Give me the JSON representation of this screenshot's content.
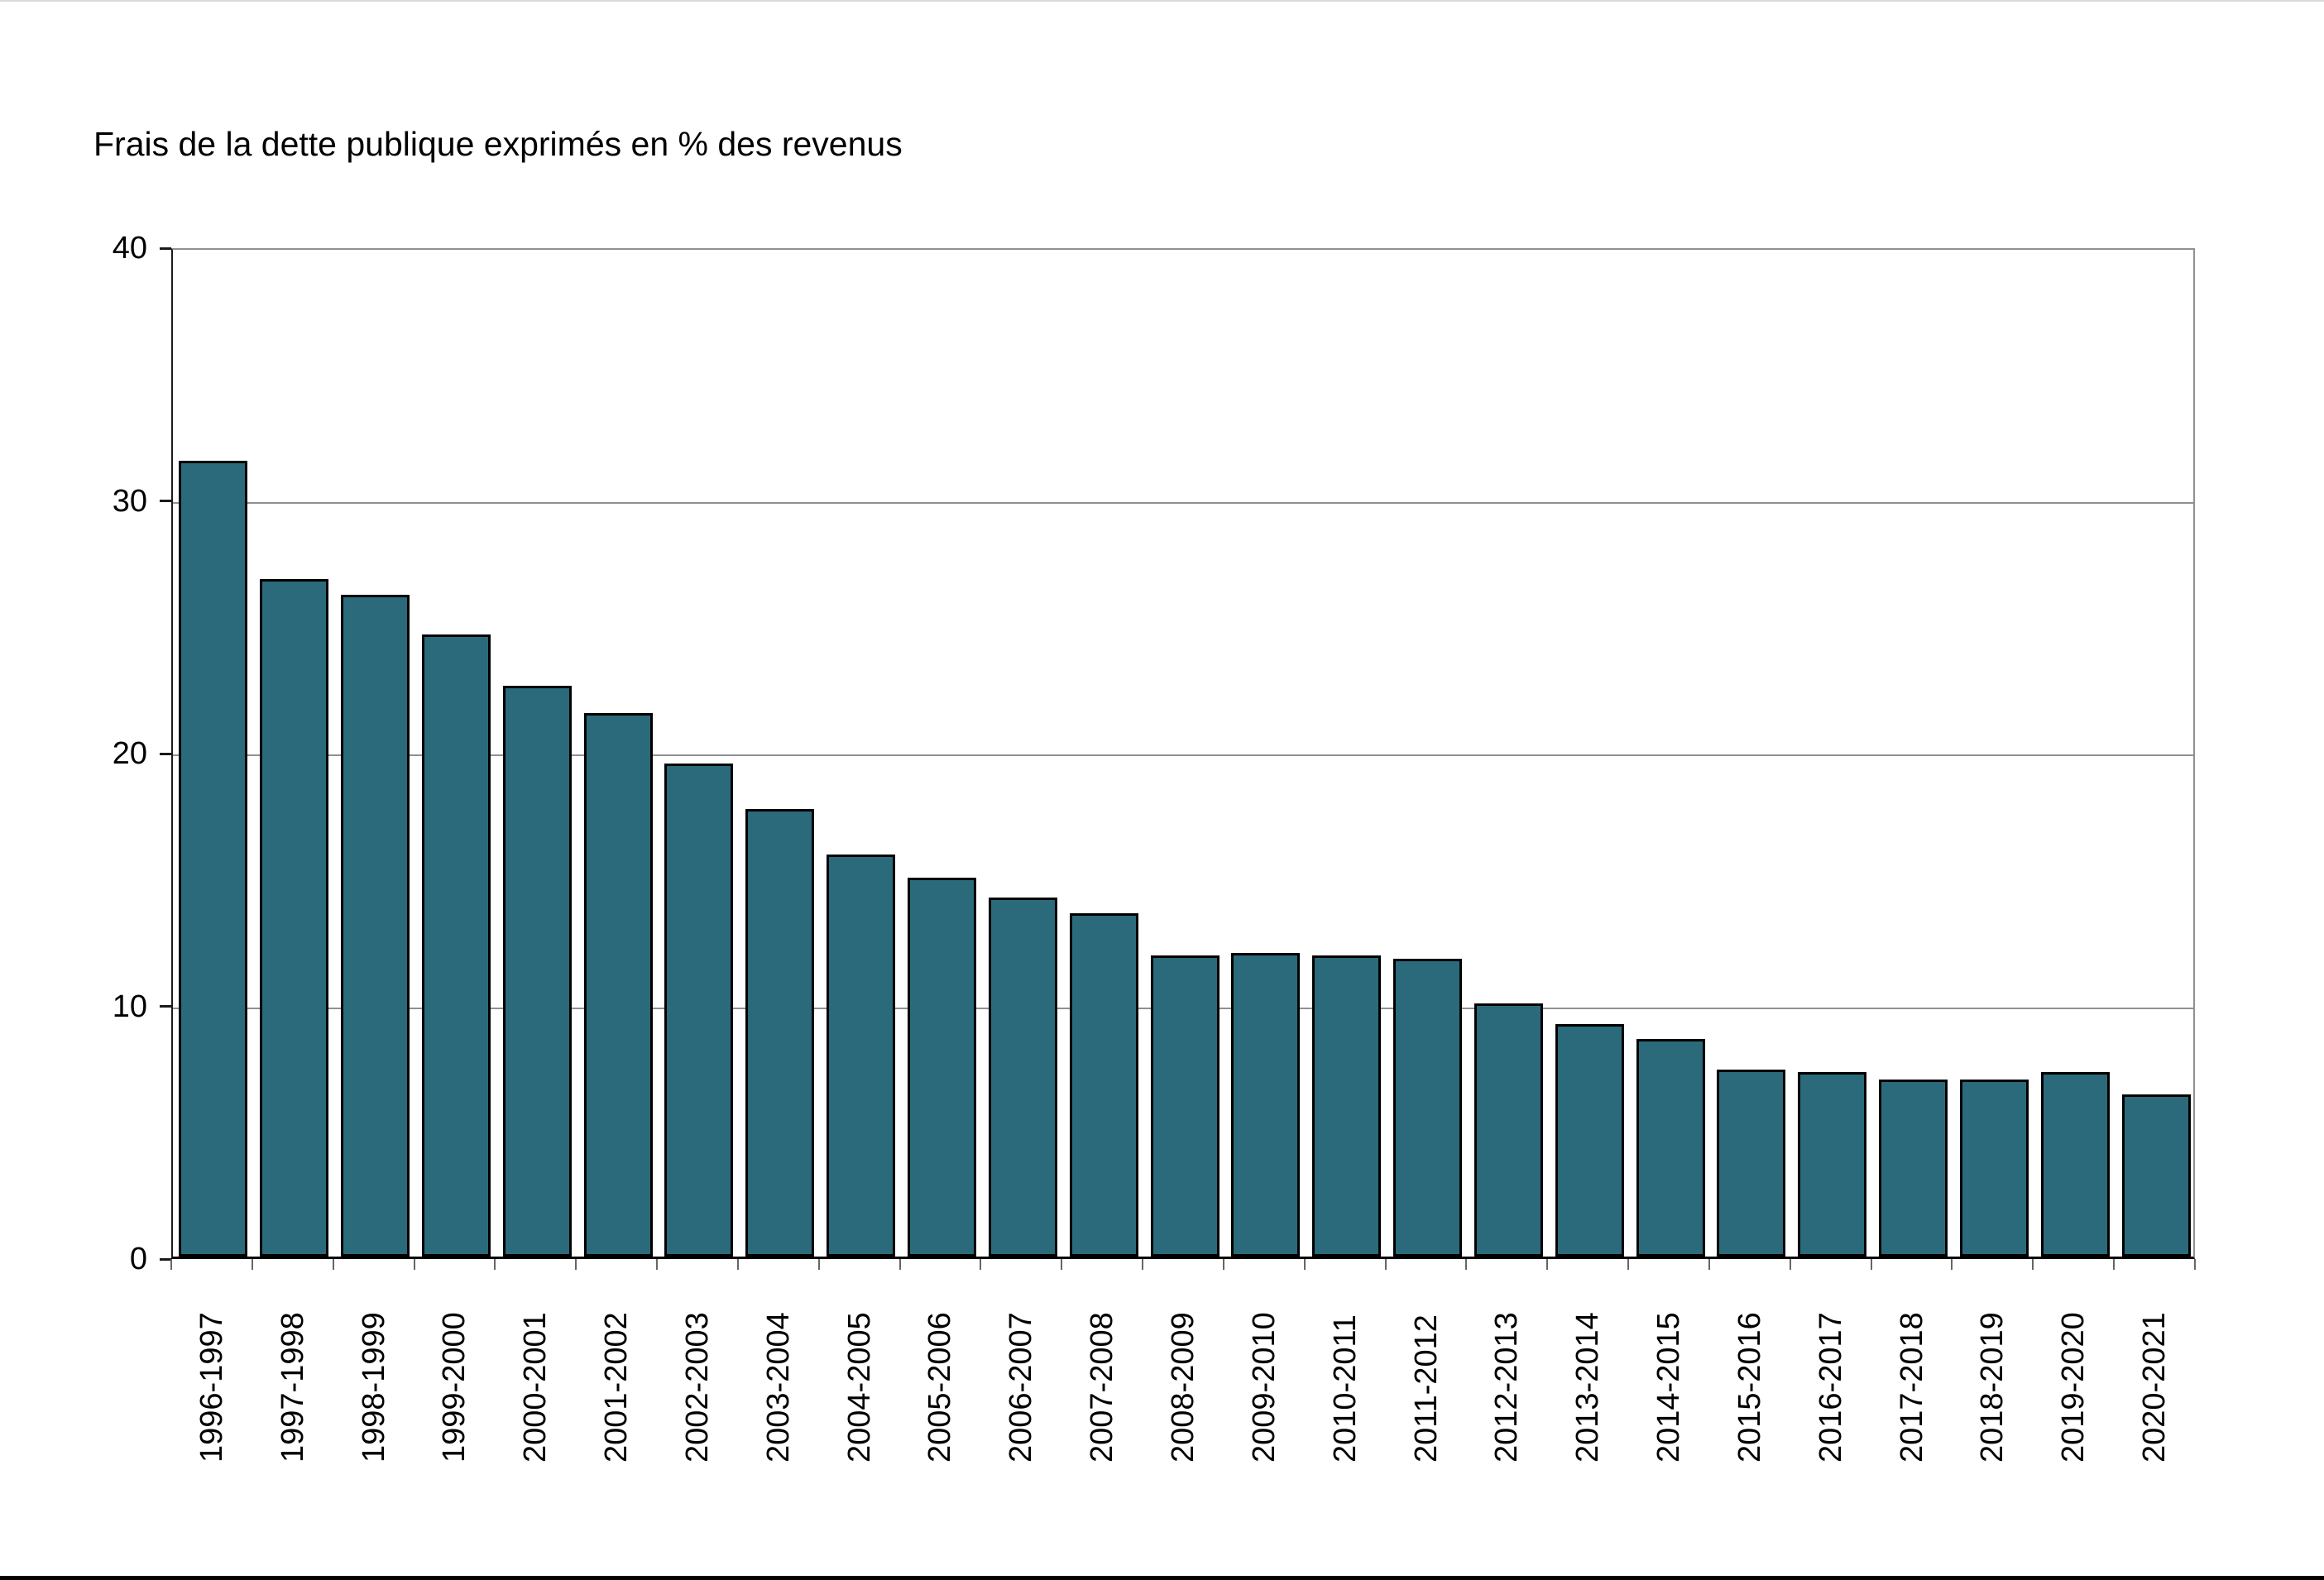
{
  "page": {
    "background": "#FFFFFF",
    "top_border_color": "#D9D9D9",
    "bottom_border_color": "#000000"
  },
  "chart_data": {
    "type": "bar",
    "title": "Frais de la dette publique exprimés en % des revenus",
    "categories": [
      "1996-1997",
      "1997-1998",
      "1998-1999",
      "1999-2000",
      "2000-2001",
      "2001-2002",
      "2002-2003",
      "2003-2004",
      "2004-2005",
      "2005-2006",
      "2006-2007",
      "2007-2008",
      "2008-2009",
      "2009-2010",
      "2010-2011",
      "2011-2012",
      "2012-2013",
      "2013-2014",
      "2014-2015",
      "2015-2016",
      "2016-2017",
      "2017-2018",
      "2018-2019",
      "2019-2020",
      "2020-2021"
    ],
    "values": [
      31.5,
      26.8,
      26.2,
      24.6,
      22.6,
      21.5,
      19.5,
      17.7,
      15.9,
      15.0,
      14.2,
      13.6,
      11.9,
      12.0,
      11.9,
      11.8,
      10.0,
      9.2,
      8.6,
      7.4,
      7.3,
      7.0,
      7.0,
      7.3,
      6.4
    ],
    "xlabel": "",
    "ylabel": "",
    "ylim": [
      0,
      40
    ],
    "yticks": [
      0,
      10,
      20,
      30,
      40
    ],
    "grid": "horizontal",
    "legend": "none",
    "x_tick_label_rotation": -90,
    "colors": {
      "bar_fill": "#2A6A7B",
      "bar_border": "#000000",
      "gridline": "#909090",
      "axis": "#000000",
      "text": "#000000",
      "background": "#FFFFFF"
    }
  }
}
